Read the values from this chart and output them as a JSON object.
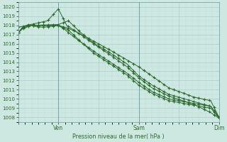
{
  "bg_color": "#cce8e0",
  "grid_color_major": "#aacccc",
  "grid_color_minor": "#bbdddd",
  "line_color": "#2d6a2d",
  "ylabel_text": "Pression niveau de la mer( hPa )",
  "ylim": [
    1007.5,
    1020.5
  ],
  "yticks": [
    1008,
    1009,
    1010,
    1011,
    1012,
    1013,
    1014,
    1015,
    1016,
    1017,
    1018,
    1019,
    1020
  ],
  "xtick_labels": [
    "",
    "Ven",
    "",
    "Sam",
    "",
    "Dim"
  ],
  "xtick_positions": [
    0,
    48,
    96,
    144,
    192,
    240
  ],
  "n_points": 241,
  "linewidth": 0.7,
  "marker_size": 3.5,
  "marker_every": 6
}
